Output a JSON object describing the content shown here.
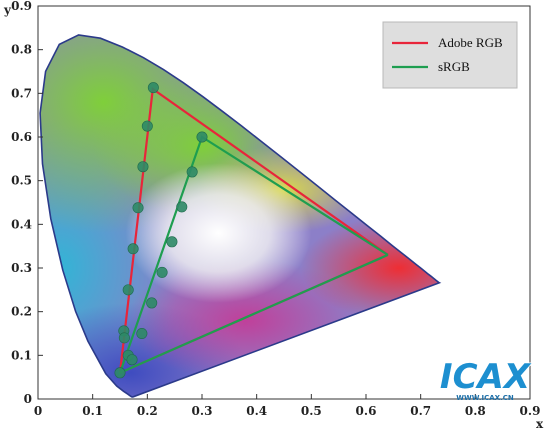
{
  "chart_data": {
    "type": "line",
    "xlabel": "x",
    "ylabel": "y",
    "xlim": [
      0,
      0.9
    ],
    "ylim": [
      0,
      0.9
    ],
    "xticks": [
      "0",
      "0.1",
      "0.2",
      "0.3",
      "0.4",
      "0.5",
      "0.6",
      "0.7",
      "0.8",
      "0.9"
    ],
    "yticks": [
      "0",
      "0.1",
      "0.2",
      "0.3",
      "0.4",
      "0.5",
      "0.6",
      "0.7",
      "0.8",
      "0.9"
    ],
    "legend_position": "top-right",
    "grid": false,
    "spectral_locus": {
      "x": [
        0.1741,
        0.1733,
        0.1726,
        0.1714,
        0.1689,
        0.1644,
        0.1566,
        0.144,
        0.1241,
        0.0913,
        0.0687,
        0.0454,
        0.0235,
        0.0082,
        0.0039,
        0.0139,
        0.0389,
        0.0743,
        0.1142,
        0.1547,
        0.1929,
        0.2296,
        0.2658,
        0.3016,
        0.3373,
        0.3731,
        0.4087,
        0.4441,
        0.4788,
        0.5125,
        0.5448,
        0.5752,
        0.6029,
        0.627,
        0.6482,
        0.6658,
        0.6801,
        0.6915,
        0.7006,
        0.7079,
        0.714,
        0.719,
        0.723,
        0.726,
        0.7283,
        0.73,
        0.7311,
        0.732,
        0.7327,
        0.7334,
        0.734
      ],
      "y": [
        0.005,
        0.0048,
        0.0048,
        0.0051,
        0.0069,
        0.0109,
        0.0177,
        0.0297,
        0.0578,
        0.1327,
        0.2007,
        0.295,
        0.4127,
        0.5384,
        0.6548,
        0.7502,
        0.812,
        0.8338,
        0.8262,
        0.8059,
        0.7816,
        0.7543,
        0.7243,
        0.6923,
        0.6589,
        0.6245,
        0.5896,
        0.5547,
        0.5202,
        0.4866,
        0.4544,
        0.4242,
        0.3965,
        0.3725,
        0.3514,
        0.334,
        0.3197,
        0.3083,
        0.2993,
        0.292,
        0.2859,
        0.2809,
        0.277,
        0.274,
        0.2717,
        0.27,
        0.2689,
        0.268,
        0.2673,
        0.2666,
        0.266
      ]
    },
    "series": [
      {
        "name": "Adobe RGB",
        "color": "#e8253a",
        "x": [
          0.64,
          0.21,
          0.15,
          0.64
        ],
        "y": [
          0.33,
          0.71,
          0.06,
          0.33
        ]
      },
      {
        "name": "sRGB",
        "color": "#1e9e50",
        "x": [
          0.64,
          0.3,
          0.15,
          0.64
        ],
        "y": [
          0.33,
          0.6,
          0.06,
          0.33
        ]
      }
    ],
    "markers": [
      {
        "color": "#2e8a66",
        "x": [
          0.211,
          0.2,
          0.192,
          0.183,
          0.174,
          0.165,
          0.157,
          0.15,
          0.158,
          0.165
        ],
        "y": [
          0.713,
          0.625,
          0.532,
          0.438,
          0.344,
          0.25,
          0.156,
          0.06,
          0.14,
          0.1
        ]
      },
      {
        "color": "#2e8a66",
        "x": [
          0.3,
          0.282,
          0.263,
          0.245,
          0.227,
          0.208,
          0.19,
          0.172
        ],
        "y": [
          0.6,
          0.52,
          0.44,
          0.36,
          0.29,
          0.22,
          0.15,
          0.09
        ]
      }
    ]
  },
  "watermark": {
    "main": "ICAX",
    "sub": "WWW.ICAX.CN"
  }
}
